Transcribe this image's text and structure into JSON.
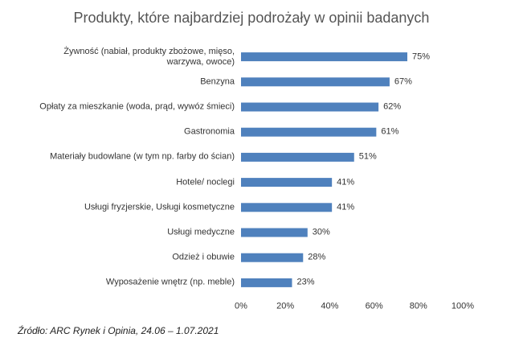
{
  "chart_data": {
    "type": "bar",
    "orientation": "horizontal",
    "title": "Produkty, które najbardziej podrożały w opinii badanych",
    "categories": [
      "Żywność (nabiał, produkty zbożowe, mięso, warzywa, owoce)",
      "Benzyna",
      "Opłaty za mieszkanie (woda, prąd, wywóz śmieci)",
      "Gastronomia",
      "Materiały budowlane (w tym np. farby do ścian)",
      "Hotele/ noclegi",
      "Usługi fryzjerskie, Usługi kosmetyczne",
      "Usługi medyczne",
      "Odzież i obuwie",
      "Wyposażenie wnętrz (np. meble)"
    ],
    "values": [
      75,
      67,
      62,
      61,
      51,
      41,
      41,
      30,
      28,
      23
    ],
    "value_labels": [
      "75%",
      "67%",
      "62%",
      "61%",
      "51%",
      "41%",
      "41%",
      "30%",
      "28%",
      "23%"
    ],
    "color": "#4f81bd",
    "xlim": [
      0,
      100
    ],
    "xticks": [
      {
        "value": 0,
        "label": "0%"
      },
      {
        "value": 20,
        "label": "20%"
      },
      {
        "value": 40,
        "label": "40%"
      },
      {
        "value": 60,
        "label": "60%"
      },
      {
        "value": 80,
        "label": "80%"
      },
      {
        "value": 100,
        "label": "100%"
      }
    ],
    "grid": false,
    "source": "Źródło: ARC Rynek i Opinia, 24.06 – 1.07.2021"
  }
}
